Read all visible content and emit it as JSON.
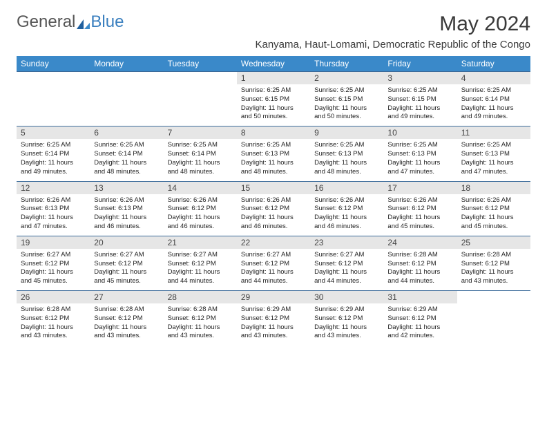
{
  "brand": {
    "part1": "General",
    "part2": "Blue"
  },
  "title": "May 2024",
  "location": "Kanyama, Haut-Lomami, Democratic Republic of the Congo",
  "colors": {
    "header_bg": "#3a89c9",
    "header_text": "#ffffff",
    "cell_border": "#3a6a9a",
    "daynum_bg": "#e6e6e6",
    "brand_gray": "#555555",
    "brand_blue": "#3a7fbf"
  },
  "weekdays": [
    "Sunday",
    "Monday",
    "Tuesday",
    "Wednesday",
    "Thursday",
    "Friday",
    "Saturday"
  ],
  "first_weekday_index": 3,
  "days": [
    {
      "n": 1,
      "sunrise": "6:25 AM",
      "sunset": "6:15 PM",
      "daylight": "11 hours and 50 minutes."
    },
    {
      "n": 2,
      "sunrise": "6:25 AM",
      "sunset": "6:15 PM",
      "daylight": "11 hours and 50 minutes."
    },
    {
      "n": 3,
      "sunrise": "6:25 AM",
      "sunset": "6:15 PM",
      "daylight": "11 hours and 49 minutes."
    },
    {
      "n": 4,
      "sunrise": "6:25 AM",
      "sunset": "6:14 PM",
      "daylight": "11 hours and 49 minutes."
    },
    {
      "n": 5,
      "sunrise": "6:25 AM",
      "sunset": "6:14 PM",
      "daylight": "11 hours and 49 minutes."
    },
    {
      "n": 6,
      "sunrise": "6:25 AM",
      "sunset": "6:14 PM",
      "daylight": "11 hours and 48 minutes."
    },
    {
      "n": 7,
      "sunrise": "6:25 AM",
      "sunset": "6:14 PM",
      "daylight": "11 hours and 48 minutes."
    },
    {
      "n": 8,
      "sunrise": "6:25 AM",
      "sunset": "6:13 PM",
      "daylight": "11 hours and 48 minutes."
    },
    {
      "n": 9,
      "sunrise": "6:25 AM",
      "sunset": "6:13 PM",
      "daylight": "11 hours and 48 minutes."
    },
    {
      "n": 10,
      "sunrise": "6:25 AM",
      "sunset": "6:13 PM",
      "daylight": "11 hours and 47 minutes."
    },
    {
      "n": 11,
      "sunrise": "6:25 AM",
      "sunset": "6:13 PM",
      "daylight": "11 hours and 47 minutes."
    },
    {
      "n": 12,
      "sunrise": "6:26 AM",
      "sunset": "6:13 PM",
      "daylight": "11 hours and 47 minutes."
    },
    {
      "n": 13,
      "sunrise": "6:26 AM",
      "sunset": "6:13 PM",
      "daylight": "11 hours and 46 minutes."
    },
    {
      "n": 14,
      "sunrise": "6:26 AM",
      "sunset": "6:12 PM",
      "daylight": "11 hours and 46 minutes."
    },
    {
      "n": 15,
      "sunrise": "6:26 AM",
      "sunset": "6:12 PM",
      "daylight": "11 hours and 46 minutes."
    },
    {
      "n": 16,
      "sunrise": "6:26 AM",
      "sunset": "6:12 PM",
      "daylight": "11 hours and 46 minutes."
    },
    {
      "n": 17,
      "sunrise": "6:26 AM",
      "sunset": "6:12 PM",
      "daylight": "11 hours and 45 minutes."
    },
    {
      "n": 18,
      "sunrise": "6:26 AM",
      "sunset": "6:12 PM",
      "daylight": "11 hours and 45 minutes."
    },
    {
      "n": 19,
      "sunrise": "6:27 AM",
      "sunset": "6:12 PM",
      "daylight": "11 hours and 45 minutes."
    },
    {
      "n": 20,
      "sunrise": "6:27 AM",
      "sunset": "6:12 PM",
      "daylight": "11 hours and 45 minutes."
    },
    {
      "n": 21,
      "sunrise": "6:27 AM",
      "sunset": "6:12 PM",
      "daylight": "11 hours and 44 minutes."
    },
    {
      "n": 22,
      "sunrise": "6:27 AM",
      "sunset": "6:12 PM",
      "daylight": "11 hours and 44 minutes."
    },
    {
      "n": 23,
      "sunrise": "6:27 AM",
      "sunset": "6:12 PM",
      "daylight": "11 hours and 44 minutes."
    },
    {
      "n": 24,
      "sunrise": "6:28 AM",
      "sunset": "6:12 PM",
      "daylight": "11 hours and 44 minutes."
    },
    {
      "n": 25,
      "sunrise": "6:28 AM",
      "sunset": "6:12 PM",
      "daylight": "11 hours and 43 minutes."
    },
    {
      "n": 26,
      "sunrise": "6:28 AM",
      "sunset": "6:12 PM",
      "daylight": "11 hours and 43 minutes."
    },
    {
      "n": 27,
      "sunrise": "6:28 AM",
      "sunset": "6:12 PM",
      "daylight": "11 hours and 43 minutes."
    },
    {
      "n": 28,
      "sunrise": "6:28 AM",
      "sunset": "6:12 PM",
      "daylight": "11 hours and 43 minutes."
    },
    {
      "n": 29,
      "sunrise": "6:29 AM",
      "sunset": "6:12 PM",
      "daylight": "11 hours and 43 minutes."
    },
    {
      "n": 30,
      "sunrise": "6:29 AM",
      "sunset": "6:12 PM",
      "daylight": "11 hours and 43 minutes."
    },
    {
      "n": 31,
      "sunrise": "6:29 AM",
      "sunset": "6:12 PM",
      "daylight": "11 hours and 42 minutes."
    }
  ],
  "labels": {
    "sunrise": "Sunrise:",
    "sunset": "Sunset:",
    "daylight": "Daylight:"
  }
}
